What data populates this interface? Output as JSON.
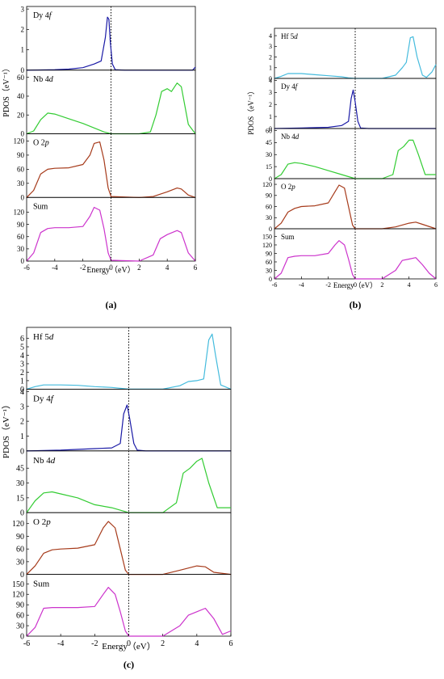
{
  "chart_data": [
    {
      "type": "line",
      "panel_label": "(a)",
      "xlabel": "Energy（eV）",
      "ylabel": "PDOS（eV⁻¹）",
      "xlim": [
        -6,
        6
      ],
      "xticks": [
        -6,
        -4,
        -2,
        0,
        2,
        4,
        6
      ],
      "fermi_level": 0,
      "subplots": [
        {
          "label_main": "Dy 4",
          "label_ital": "f",
          "color": "#1a1aa6",
          "ylim": [
            0,
            3
          ],
          "yticks": [
            0,
            1,
            2,
            3
          ],
          "x": [
            -6,
            -4,
            -3,
            -2,
            -1.2,
            -0.7,
            -0.4,
            -0.25,
            -0.15,
            -0.05,
            0.1,
            0.3,
            1,
            4,
            5.8,
            6
          ],
          "y": [
            0,
            0.02,
            0.05,
            0.12,
            0.3,
            0.45,
            1.6,
            2.6,
            2.5,
            1.4,
            0.3,
            0.02,
            0,
            0,
            0,
            0.15
          ]
        },
        {
          "label_main": "Nb 4",
          "label_ital": "d",
          "color": "#33cc33",
          "ylim": [
            0,
            65
          ],
          "yticks": [
            0,
            20,
            40,
            60
          ],
          "x": [
            -6,
            -5.5,
            -5,
            -4.5,
            -4,
            -3,
            -2,
            -1,
            -0.5,
            0,
            2,
            2.8,
            3.2,
            3.6,
            4,
            4.3,
            4.7,
            5,
            5.5,
            6
          ],
          "y": [
            0,
            3,
            15,
            22,
            21,
            16,
            11,
            5,
            2,
            0,
            0,
            2,
            20,
            45,
            48,
            45,
            54,
            50,
            10,
            0
          ]
        },
        {
          "label_main": "O 2",
          "label_ital": "p",
          "color": "#a63a1a",
          "ylim": [
            0,
            130
          ],
          "yticks": [
            0,
            30,
            60,
            90,
            120
          ],
          "x": [
            -6,
            -5.5,
            -5,
            -4.5,
            -4,
            -3,
            -2,
            -1.5,
            -1.2,
            -0.8,
            -0.5,
            -0.2,
            0,
            2,
            3,
            4,
            4.7,
            5,
            5.5,
            6
          ],
          "y": [
            0,
            15,
            50,
            60,
            62,
            63,
            70,
            90,
            115,
            118,
            80,
            20,
            2,
            0,
            2,
            12,
            20,
            18,
            5,
            0
          ]
        },
        {
          "label_main": "Sum",
          "label_ital": "",
          "color": "#cc33cc",
          "ylim": [
            0,
            150
          ],
          "yticks": [
            0,
            30,
            60,
            90,
            120
          ],
          "x": [
            -6,
            -5.5,
            -5,
            -4.5,
            -4,
            -3,
            -2,
            -1.5,
            -1.2,
            -0.8,
            -0.5,
            -0.2,
            0,
            2,
            3,
            3.5,
            4,
            4.7,
            5,
            5.5,
            6
          ],
          "y": [
            0,
            20,
            70,
            80,
            82,
            82,
            85,
            110,
            132,
            125,
            80,
            20,
            2,
            0,
            15,
            55,
            65,
            75,
            70,
            20,
            0
          ]
        }
      ]
    },
    {
      "type": "line",
      "panel_label": "(b)",
      "xlabel": "Energy（eV）",
      "ylabel": "PDOS（eV⁻¹）",
      "xlim": [
        -6,
        6
      ],
      "xticks": [
        -6,
        -4,
        -2,
        0,
        2,
        4,
        6
      ],
      "fermi_level": 0,
      "subplots": [
        {
          "label_main": "Hf 5",
          "label_ital": "d",
          "color": "#44bbdd",
          "ylim": [
            0,
            4.5
          ],
          "yticks": [
            0,
            1,
            2,
            3,
            4
          ],
          "x": [
            -6,
            -5.5,
            -5,
            -4,
            -3,
            -2,
            -1,
            -0.5,
            0,
            2,
            3,
            3.5,
            3.8,
            4.1,
            4.3,
            4.6,
            5,
            5.3,
            5.7,
            6
          ],
          "y": [
            0,
            0.2,
            0.45,
            0.45,
            0.35,
            0.25,
            0.15,
            0.05,
            0,
            0,
            0.3,
            1,
            1.5,
            3.8,
            3.9,
            2,
            0.3,
            0.1,
            0.6,
            1.3
          ]
        },
        {
          "label_main": "Dy 4",
          "label_ital": "f",
          "color": "#1a1aa6",
          "ylim": [
            0,
            4
          ],
          "yticks": [
            0,
            1,
            2,
            3,
            4
          ],
          "x": [
            -6,
            -4,
            -2,
            -1,
            -0.5,
            -0.3,
            -0.15,
            0,
            0.2,
            0.4,
            1,
            4,
            6
          ],
          "y": [
            0,
            0.05,
            0.1,
            0.25,
            0.6,
            2.5,
            3.2,
            2.2,
            0.6,
            0.05,
            0,
            0,
            0
          ]
        },
        {
          "label_main": "Nb 4",
          "label_ital": "d",
          "color": "#33cc33",
          "ylim": [
            0,
            60
          ],
          "yticks": [
            0,
            15,
            30,
            45,
            60
          ],
          "x": [
            -6,
            -5.5,
            -5,
            -4.5,
            -4,
            -3,
            -2,
            -1,
            0,
            2,
            2.8,
            3.2,
            3.6,
            4,
            4.3,
            4.7,
            5.2,
            6
          ],
          "y": [
            0,
            5,
            18,
            20,
            19,
            15,
            10,
            5,
            0,
            0,
            5,
            35,
            40,
            48,
            48,
            30,
            5,
            5
          ]
        },
        {
          "label_main": "O 2",
          "label_ital": "p",
          "color": "#a63a1a",
          "ylim": [
            0,
            130
          ],
          "yticks": [
            0,
            30,
            60,
            90,
            120
          ],
          "x": [
            -6,
            -5.5,
            -5,
            -4.5,
            -4,
            -3,
            -2,
            -1.5,
            -1.2,
            -0.8,
            -0.5,
            -0.2,
            0,
            2,
            3,
            4,
            4.5,
            5,
            6
          ],
          "y": [
            0,
            15,
            45,
            55,
            60,
            62,
            70,
            100,
            118,
            110,
            60,
            10,
            0,
            0,
            5,
            15,
            18,
            12,
            0
          ]
        },
        {
          "label_main": "Sum",
          "label_ital": "",
          "color": "#cc33cc",
          "ylim": [
            0,
            170
          ],
          "yticks": [
            0,
            30,
            60,
            90,
            120,
            150
          ],
          "x": [
            -6,
            -5.5,
            -5,
            -4.5,
            -4,
            -3,
            -2,
            -1.5,
            -1.2,
            -0.8,
            -0.5,
            -0.2,
            0,
            2,
            3,
            3.5,
            4,
            4.5,
            5,
            5.5,
            6
          ],
          "y": [
            0,
            20,
            75,
            80,
            82,
            82,
            90,
            120,
            135,
            120,
            70,
            15,
            0,
            0,
            30,
            65,
            70,
            75,
            50,
            20,
            0
          ]
        }
      ]
    },
    {
      "type": "line",
      "panel_label": "(c)",
      "xlabel": "Energy（eV）",
      "ylabel": "PDOS（eV⁻¹）",
      "xlim": [
        -6,
        6
      ],
      "xticks": [
        -6,
        -4,
        -2,
        0,
        2,
        4,
        6
      ],
      "fermi_level": 0,
      "subplots": [
        {
          "label_main": "Hf 5",
          "label_ital": "d",
          "color": "#44bbdd",
          "ylim": [
            0,
            7
          ],
          "yticks": [
            0,
            1,
            2,
            3,
            4,
            5,
            6
          ],
          "x": [
            -6,
            -5.5,
            -5,
            -4,
            -3,
            -2,
            -1,
            0,
            2,
            3,
            3.5,
            4,
            4.4,
            4.7,
            4.9,
            5.1,
            5.4,
            6
          ],
          "y": [
            0,
            0.3,
            0.5,
            0.5,
            0.45,
            0.3,
            0.2,
            0,
            0,
            0.4,
            0.9,
            1,
            1.2,
            5.8,
            6.5,
            4,
            0.5,
            0
          ]
        },
        {
          "label_main": "Dy 4",
          "label_ital": "f",
          "color": "#1a1aa6",
          "ylim": [
            0,
            4
          ],
          "yticks": [
            0,
            1,
            2,
            3,
            4
          ],
          "x": [
            -6,
            -4,
            -2,
            -1,
            -0.5,
            -0.3,
            -0.1,
            0.05,
            0.3,
            0.5,
            1,
            4,
            6
          ],
          "y": [
            0,
            0.05,
            0.15,
            0.2,
            0.5,
            2.5,
            3.1,
            2.2,
            0.5,
            0.05,
            0,
            0,
            0
          ]
        },
        {
          "label_main": "Nb 4",
          "label_ital": "d",
          "color": "#33cc33",
          "ylim": [
            0,
            60
          ],
          "yticks": [
            0,
            15,
            30,
            45
          ],
          "x": [
            -6,
            -5.5,
            -5,
            -4.5,
            -4,
            -3,
            -2,
            -1,
            0,
            2,
            2.8,
            3.2,
            3.6,
            4,
            4.3,
            4.7,
            5.2,
            6
          ],
          "y": [
            0,
            12,
            20,
            21,
            19,
            15,
            8,
            5,
            0,
            0,
            10,
            40,
            45,
            52,
            55,
            30,
            5,
            5
          ]
        },
        {
          "label_main": "O 2",
          "label_ital": "p",
          "color": "#a63a1a",
          "ylim": [
            0,
            140
          ],
          "yticks": [
            0,
            30,
            60,
            90,
            120
          ],
          "x": [
            -6,
            -5.5,
            -5,
            -4.5,
            -4,
            -3,
            -2,
            -1.5,
            -1.2,
            -0.8,
            -0.5,
            -0.2,
            0,
            2,
            3,
            4,
            4.5,
            5,
            6
          ],
          "y": [
            0,
            20,
            50,
            58,
            60,
            62,
            70,
            110,
            125,
            110,
            60,
            10,
            0,
            0,
            10,
            20,
            18,
            5,
            0
          ]
        },
        {
          "label_main": "Sum",
          "label_ital": "",
          "color": "#cc33cc",
          "ylim": [
            0,
            170
          ],
          "yticks": [
            0,
            30,
            60,
            90,
            120,
            150
          ],
          "x": [
            -6,
            -5.5,
            -5,
            -4.5,
            -4,
            -3,
            -2,
            -1.5,
            -1.2,
            -0.8,
            -0.5,
            -0.2,
            0,
            2,
            3,
            3.5,
            4,
            4.5,
            5,
            5.5,
            6
          ],
          "y": [
            0,
            25,
            80,
            82,
            82,
            82,
            85,
            120,
            140,
            120,
            70,
            15,
            0,
            0,
            30,
            60,
            70,
            80,
            50,
            5,
            15
          ]
        }
      ]
    }
  ]
}
